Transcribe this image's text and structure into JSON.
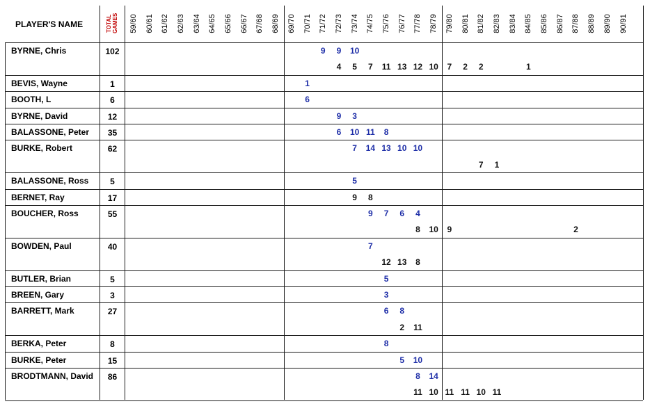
{
  "header": {
    "name_label": "PLAYER'S NAME",
    "total_label_line1": "TOTAL",
    "total_label_line2": "GAMES"
  },
  "seasons": [
    "59/60",
    "60/61",
    "61/62",
    "62/63",
    "63/64",
    "64/65",
    "65/66",
    "66/67",
    "67/68",
    "68/69",
    "69/70",
    "70/71",
    "71/72",
    "72/73",
    "73/74",
    "74/75",
    "75/76",
    "76/77",
    "77/78",
    "78/79",
    "79/80",
    "80/81",
    "81/82",
    "82/83",
    "83/84",
    "84/85",
    "85/86",
    "86/87",
    "87/88",
    "88/89",
    "89/90",
    "90/91"
  ],
  "colors": {
    "blue": "#1f2fa8",
    "black": "#111111",
    "red": "#c00000"
  },
  "players": [
    {
      "name": "BYRNE, Chris",
      "total": "102",
      "lines": [
        {
          "color": "blue",
          "values": {
            "71/72": "9",
            "72/73": "9",
            "73/74": "10"
          }
        },
        {
          "color": "black",
          "values": {
            "72/73": "4",
            "73/74": "5",
            "74/75": "7",
            "75/76": "11",
            "76/77": "13",
            "77/78": "12",
            "78/79": "10",
            "79/80": "7",
            "80/81": "2",
            "81/82": "2",
            "84/85": "1"
          }
        }
      ]
    },
    {
      "name": "BEVIS, Wayne",
      "total": "1",
      "lines": [
        {
          "color": "blue",
          "values": {
            "70/71": "1"
          }
        }
      ]
    },
    {
      "name": "BOOTH, L",
      "total": "6",
      "lines": [
        {
          "color": "blue",
          "values": {
            "70/71": "6"
          }
        }
      ]
    },
    {
      "name": "BYRNE, David",
      "total": "12",
      "lines": [
        {
          "color": "blue",
          "values": {
            "72/73": "9",
            "73/74": "3"
          }
        }
      ]
    },
    {
      "name": "BALASSONE, Peter",
      "total": "35",
      "lines": [
        {
          "color": "blue",
          "values": {
            "72/73": "6",
            "73/74": "10",
            "74/75": "11",
            "75/76": "8"
          }
        }
      ]
    },
    {
      "name": "BURKE, Robert",
      "total": "62",
      "lines": [
        {
          "color": "blue",
          "values": {
            "73/74": "7",
            "74/75": "14",
            "75/76": "13",
            "76/77": "10",
            "77/78": "10"
          }
        },
        {
          "color": "black",
          "values": {
            "81/82": "7",
            "82/83": "1"
          }
        }
      ]
    },
    {
      "name": "BALASSONE, Ross",
      "total": "5",
      "lines": [
        {
          "color": "blue",
          "values": {
            "73/74": "5"
          }
        }
      ]
    },
    {
      "name": "BERNET, Ray",
      "total": "17",
      "lines": [
        {
          "color": "black",
          "values": {
            "73/74": "9",
            "74/75": "8"
          }
        }
      ]
    },
    {
      "name": "BOUCHER, Ross",
      "total": "55",
      "lines": [
        {
          "color": "blue",
          "values": {
            "74/75": "9",
            "75/76": "7",
            "76/77": "6",
            "77/78": "4"
          }
        },
        {
          "color": "black",
          "values": {
            "77/78": "8",
            "78/79": "10",
            "79/80": "9",
            "87/88": "2"
          }
        }
      ]
    },
    {
      "name": "BOWDEN, Paul",
      "total": "40",
      "lines": [
        {
          "color": "blue",
          "values": {
            "74/75": "7"
          }
        },
        {
          "color": "black",
          "values": {
            "75/76": "12",
            "76/77": "13",
            "77/78": "8"
          }
        }
      ]
    },
    {
      "name": "BUTLER, Brian",
      "total": "5",
      "lines": [
        {
          "color": "blue",
          "values": {
            "75/76": "5"
          }
        }
      ]
    },
    {
      "name": "BREEN, Gary",
      "total": "3",
      "lines": [
        {
          "color": "blue",
          "values": {
            "75/76": "3"
          }
        }
      ]
    },
    {
      "name": "BARRETT, Mark",
      "total": "27",
      "lines": [
        {
          "color": "blue",
          "values": {
            "75/76": "6",
            "76/77": "8"
          }
        },
        {
          "color": "black",
          "values": {
            "76/77": "2",
            "77/78": "11"
          }
        }
      ]
    },
    {
      "name": "BERKA, Peter",
      "total": "8",
      "lines": [
        {
          "color": "blue",
          "values": {
            "75/76": "8"
          }
        }
      ]
    },
    {
      "name": "BURKE, Peter",
      "total": "15",
      "lines": [
        {
          "color": "blue",
          "values": {
            "76/77": "5",
            "77/78": "10"
          }
        }
      ]
    },
    {
      "name": "BRODTMANN, David",
      "total": "86",
      "lines": [
        {
          "color": "blue",
          "values": {
            "77/78": "8",
            "78/79": "14"
          }
        },
        {
          "color": "black",
          "values": {
            "77/78": "11",
            "78/79": "10",
            "79/80": "11",
            "80/81": "11",
            "81/82": "10",
            "82/83": "11"
          }
        }
      ]
    }
  ]
}
